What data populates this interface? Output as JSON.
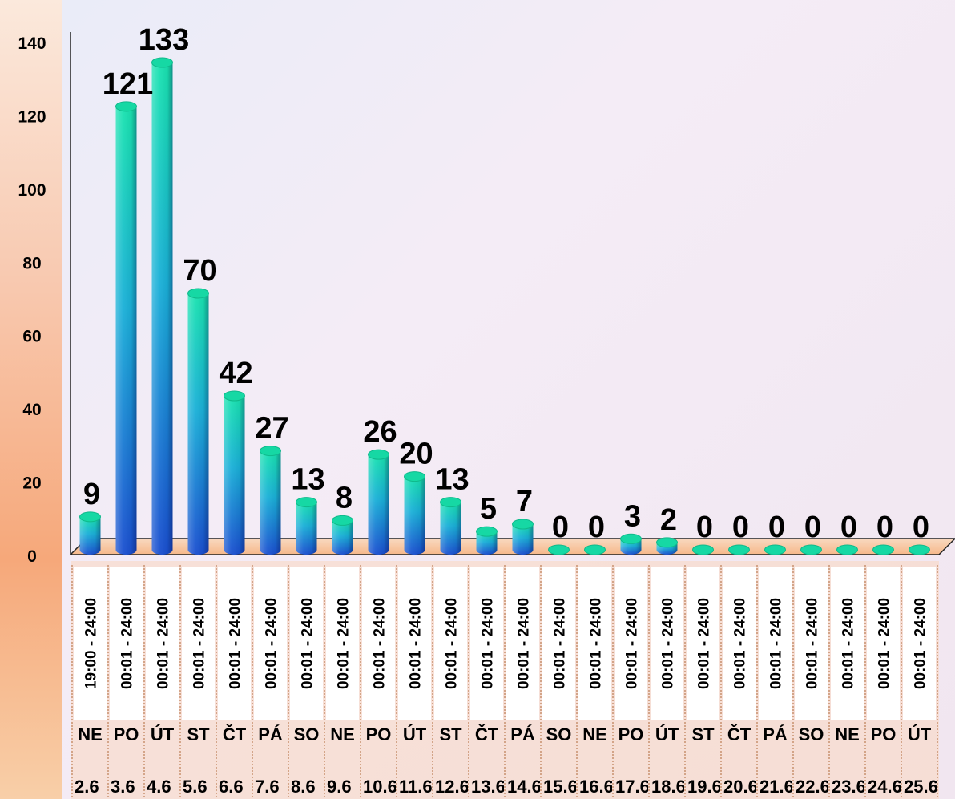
{
  "chart_data": {
    "type": "bar",
    "title": "",
    "xlabel": "",
    "ylabel": "",
    "ylim": [
      0,
      140
    ],
    "yticks": [
      0,
      20,
      40,
      60,
      80,
      100,
      120,
      140
    ],
    "grid": false,
    "style": "3d-cylinder",
    "colors": {
      "bar_top": "#19e3b0",
      "bar_bottom": "#1a55d6",
      "axis_band": "#f7c08e"
    },
    "categories": [
      {
        "time": "19:00 - 24:00",
        "day": "NE",
        "date": "2.6"
      },
      {
        "time": "00:01 - 24:00",
        "day": "PO",
        "date": "3.6"
      },
      {
        "time": "00:01 - 24:00",
        "day": "ÚT",
        "date": "4.6"
      },
      {
        "time": "00:01 - 24:00",
        "day": "ST",
        "date": "5.6"
      },
      {
        "time": "00:01 - 24:00",
        "day": "ČT",
        "date": "6.6"
      },
      {
        "time": "00:01 - 24:00",
        "day": "PÁ",
        "date": "7.6"
      },
      {
        "time": "00:01 - 24:00",
        "day": "SO",
        "date": "8.6"
      },
      {
        "time": "00:01 - 24:00",
        "day": "NE",
        "date": "9.6"
      },
      {
        "time": "00:01 - 24:00",
        "day": "PO",
        "date": "10.6"
      },
      {
        "time": "00:01 - 24:00",
        "day": "ÚT",
        "date": "11.6"
      },
      {
        "time": "00:01 - 24:00",
        "day": "ST",
        "date": "12.6"
      },
      {
        "time": "00:01 - 24:00",
        "day": "ČT",
        "date": "13.6"
      },
      {
        "time": "00:01 - 24:00",
        "day": "PÁ",
        "date": "14.6"
      },
      {
        "time": "00:01 - 24:00",
        "day": "SO",
        "date": "15.6"
      },
      {
        "time": "00:01 - 24:00",
        "day": "NE",
        "date": "16.6"
      },
      {
        "time": "00:01 - 24:00",
        "day": "PO",
        "date": "17.6"
      },
      {
        "time": "00:01 - 24:00",
        "day": "ÚT",
        "date": "18.6"
      },
      {
        "time": "00:01 - 24:00",
        "day": "ST",
        "date": "19.6"
      },
      {
        "time": "00:01 - 24:00",
        "day": "ČT",
        "date": "20.6"
      },
      {
        "time": "00:01 - 24:00",
        "day": "PÁ",
        "date": "21.6"
      },
      {
        "time": "00:01 - 24:00",
        "day": "SO",
        "date": "22.6"
      },
      {
        "time": "00:01 - 24:00",
        "day": "NE",
        "date": "23.6"
      },
      {
        "time": "00:01 - 24:00",
        "day": "PO",
        "date": "24.6"
      },
      {
        "time": "00:01 - 24:00",
        "day": "ÚT",
        "date": "25.6"
      }
    ],
    "values": [
      9,
      121,
      133,
      70,
      42,
      27,
      13,
      8,
      26,
      20,
      13,
      5,
      7,
      0,
      0,
      3,
      2,
      0,
      0,
      0,
      0,
      0,
      0,
      0
    ],
    "data_labels": [
      "9",
      "121",
      "133",
      "70",
      "42",
      "27",
      "13",
      "8",
      "26",
      "20",
      "13",
      "5",
      "7",
      "0",
      "0",
      "3",
      "2",
      "0",
      "0",
      "0",
      "0",
      "0",
      "0",
      "0"
    ]
  }
}
